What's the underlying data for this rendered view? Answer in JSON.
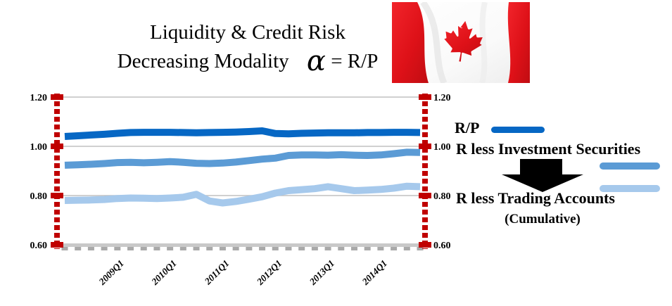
{
  "title": {
    "line1": "Liquidity & Credit Risk",
    "line2_prefix": "Decreasing Modality",
    "alpha_symbol": "α",
    "line2_formula": "= R/P"
  },
  "flag": {
    "country": "Canada"
  },
  "legend": {
    "rp_label": "R/P",
    "investment_label": "R less Investment Securities",
    "trading_label": "R less Trading Accounts",
    "cumulative_label": "(Cumulative)"
  },
  "colors": {
    "rp_line": "#0667C4",
    "investment_line": "#5B9BD5",
    "trading_line": "#A6C9EC",
    "axis_red": "#C00000",
    "gridline": "#C0C0C0",
    "x_axis": "#C9C9C9",
    "x_ticks": "#A9A9A9",
    "arrow": "#000000",
    "flag_red": "#E0151B"
  },
  "chart_data": {
    "type": "line",
    "x": [
      "2008Q1",
      "2008Q2",
      "2008Q3",
      "2008Q4",
      "2009Q1",
      "2009Q2",
      "2009Q3",
      "2009Q4",
      "2010Q1",
      "2010Q2",
      "2010Q3",
      "2010Q4",
      "2011Q1",
      "2011Q2",
      "2011Q3",
      "2011Q4",
      "2012Q1",
      "2012Q2",
      "2012Q3",
      "2012Q4",
      "2013Q1",
      "2013Q2",
      "2013Q3",
      "2013Q4",
      "2014Q1",
      "2014Q2",
      "2014Q3",
      "2014Q4"
    ],
    "x_axis_tick_labels": [
      "2009Q1",
      "2010Q1",
      "2011Q1",
      "2012Q1",
      "2013Q1",
      "2014Q1"
    ],
    "ylim": [
      0.6,
      1.2
    ],
    "yticks": [
      0.6,
      0.8,
      1.0,
      1.2
    ],
    "grid": true,
    "legend_position": "right",
    "series": [
      {
        "name": "R/P",
        "color": "#0667C4",
        "values": [
          1.04,
          1.043,
          1.046,
          1.049,
          1.053,
          1.056,
          1.057,
          1.057,
          1.057,
          1.056,
          1.055,
          1.056,
          1.057,
          1.058,
          1.06,
          1.063,
          1.052,
          1.051,
          1.053,
          1.054,
          1.055,
          1.055,
          1.055,
          1.056,
          1.056,
          1.057,
          1.057,
          1.056
        ]
      },
      {
        "name": "R less Investment Securities",
        "color": "#5B9BD5",
        "values": [
          0.923,
          0.925,
          0.927,
          0.93,
          0.934,
          0.935,
          0.933,
          0.935,
          0.938,
          0.935,
          0.931,
          0.93,
          0.932,
          0.936,
          0.942,
          0.948,
          0.952,
          0.963,
          0.965,
          0.965,
          0.964,
          0.966,
          0.964,
          0.963,
          0.965,
          0.97,
          0.976,
          0.975
        ]
      },
      {
        "name": "R less Trading Accounts (Cumulative)",
        "color": "#A6C9EC",
        "values": [
          0.78,
          0.781,
          0.782,
          0.784,
          0.788,
          0.79,
          0.789,
          0.788,
          0.79,
          0.793,
          0.805,
          0.778,
          0.77,
          0.776,
          0.785,
          0.795,
          0.81,
          0.82,
          0.824,
          0.828,
          0.836,
          0.828,
          0.82,
          0.822,
          0.825,
          0.83,
          0.838,
          0.836
        ]
      }
    ]
  }
}
